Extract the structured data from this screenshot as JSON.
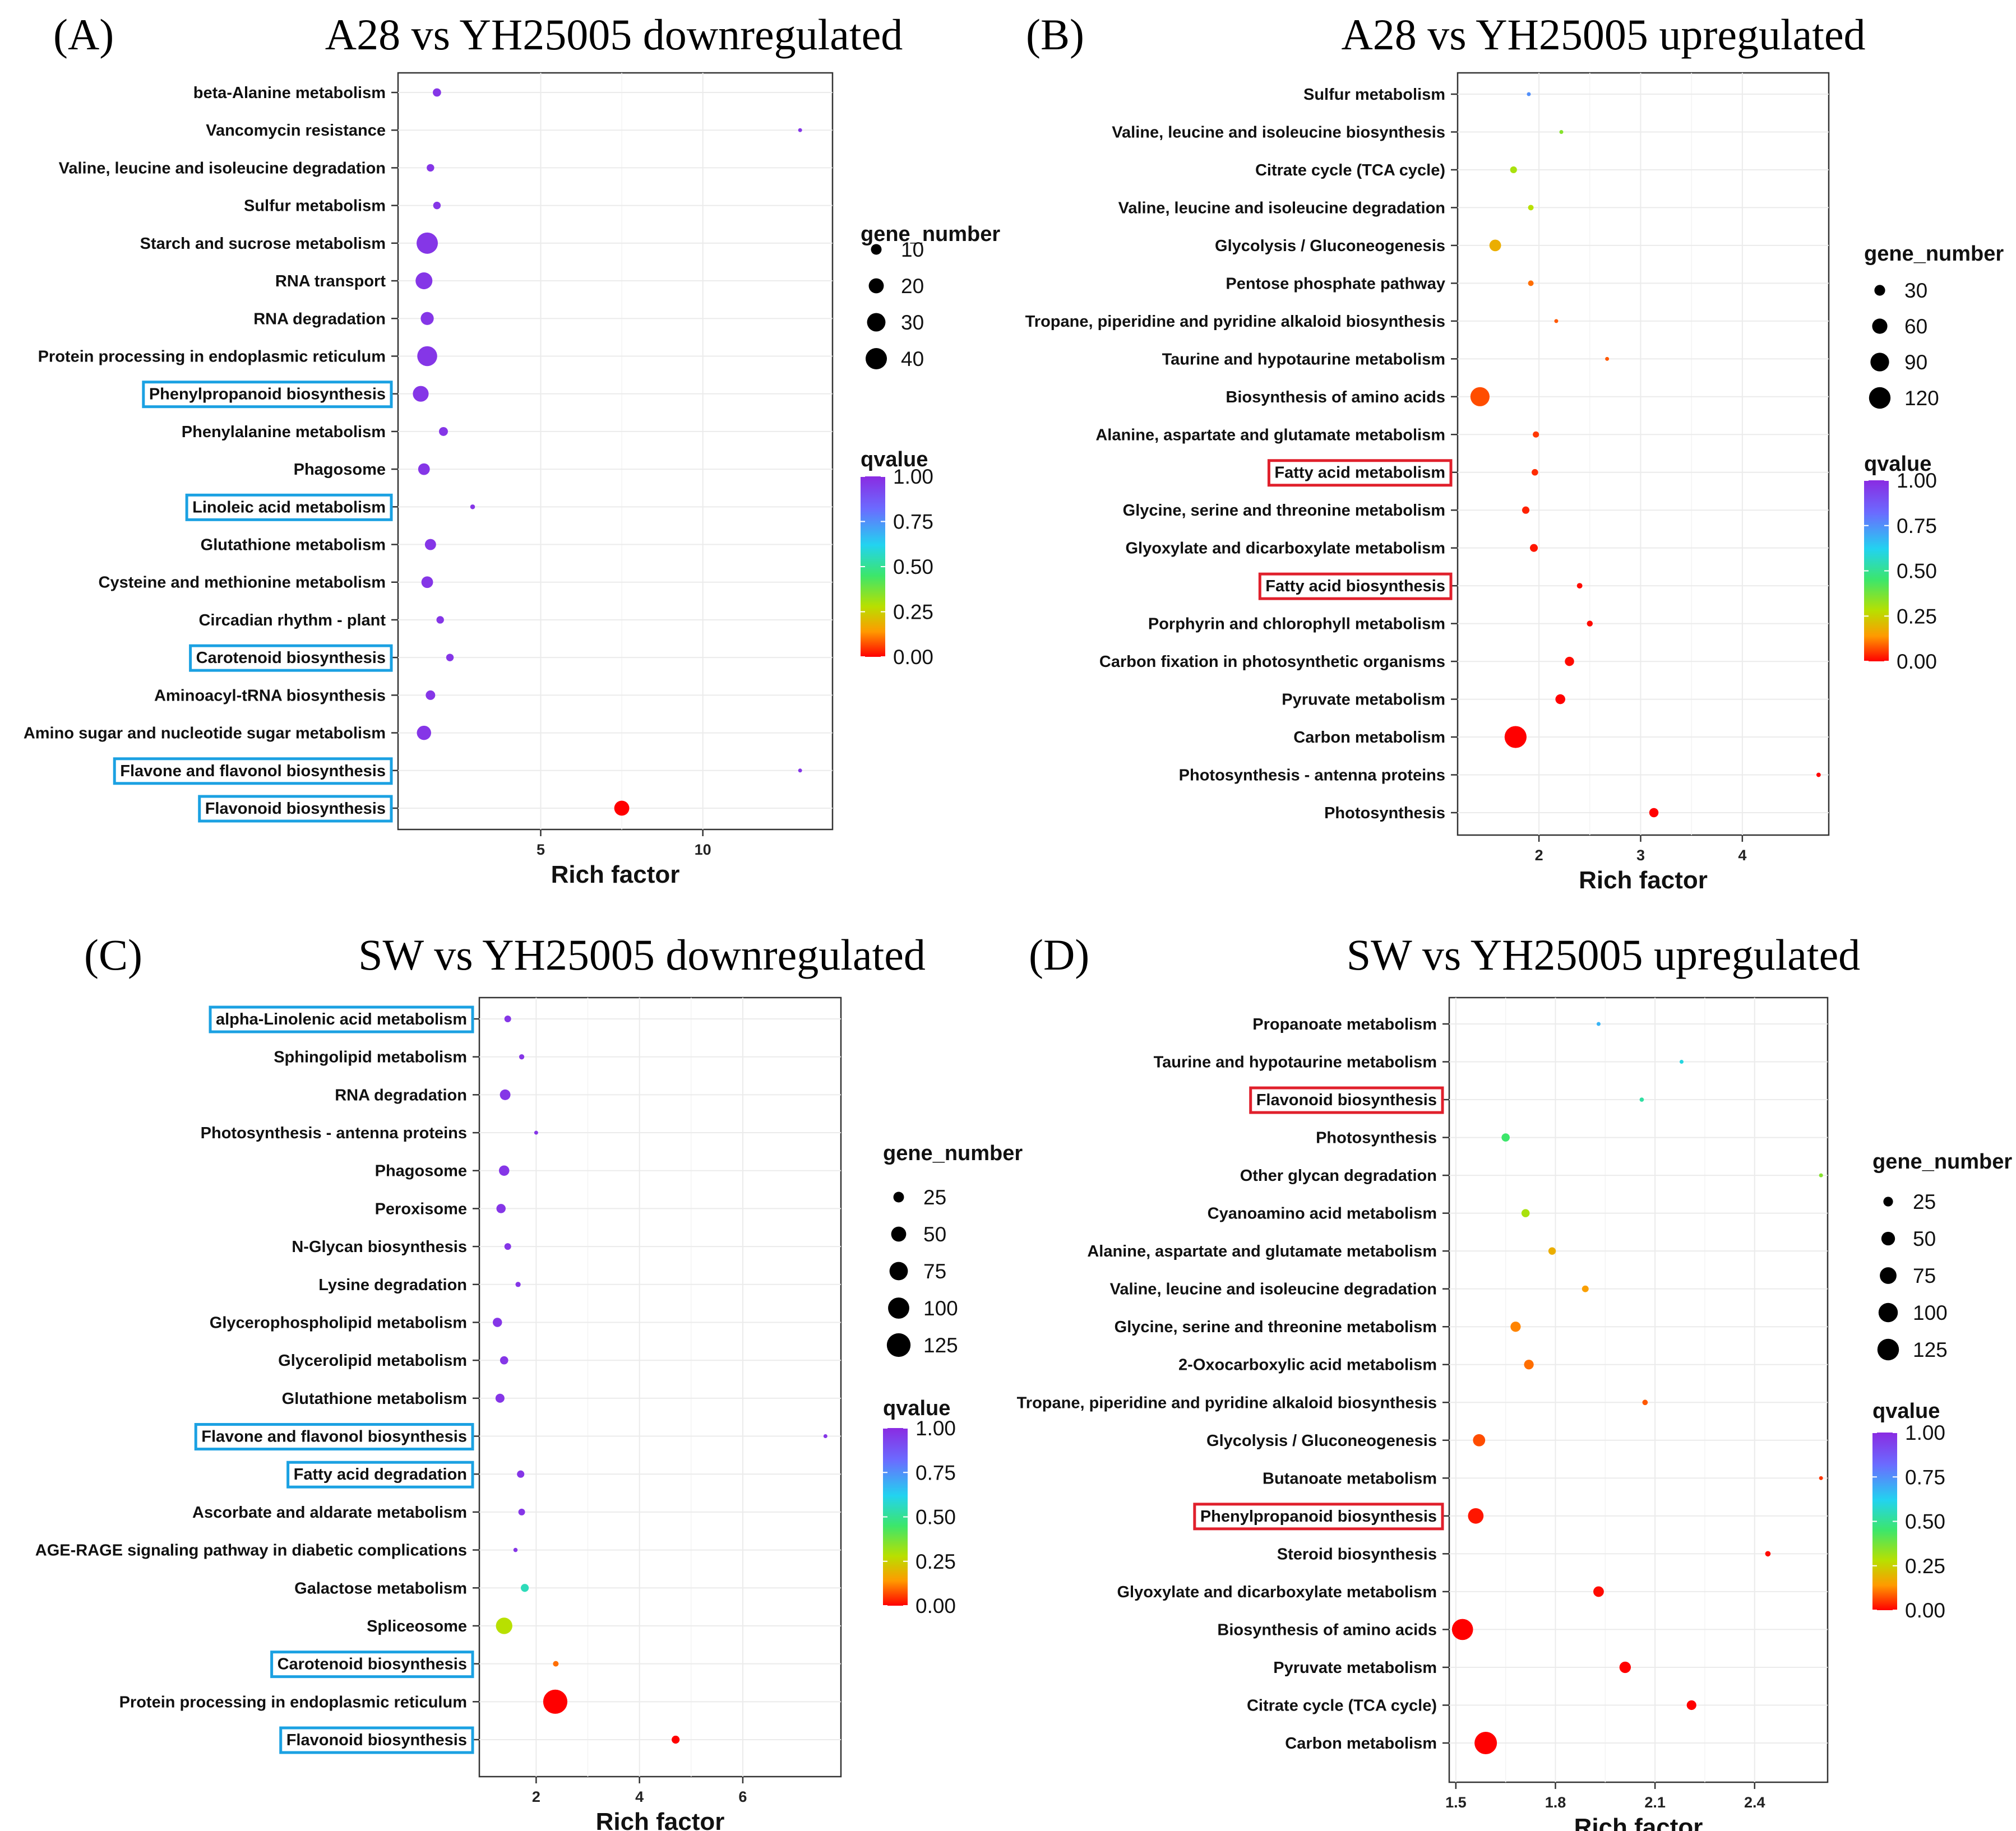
{
  "figure_colors": {
    "blue_box": "#1ba1e2",
    "red_box": "#e0202c",
    "grid": "#ebebeb"
  },
  "chart_data": [
    {
      "id": "A",
      "type": "scatter",
      "panel_label": "(A)",
      "title": "A28 vs YH25005 downregulated",
      "xlabel": "Rich factor",
      "xticks": [
        5,
        10
      ],
      "xlim": [
        0.6,
        14.0
      ],
      "size_legend": {
        "title": "gene_number",
        "values": [
          10,
          20,
          30,
          40
        ]
      },
      "color_legend": {
        "title": "qvalue",
        "ticks": [
          "1.00",
          "0.75",
          "0.50",
          "0.25",
          "0.00"
        ]
      },
      "highlight": "blue",
      "points": [
        {
          "name": "beta-Alanine metabolism",
          "x": 1.8,
          "q": 0.97,
          "g": 6,
          "box": false
        },
        {
          "name": "Vancomycin resistance",
          "x": 13.0,
          "q": 0.97,
          "g": 1,
          "box": false
        },
        {
          "name": "Valine, leucine and isoleucine degradation",
          "x": 1.6,
          "q": 0.97,
          "g": 5,
          "box": false
        },
        {
          "name": "Sulfur metabolism",
          "x": 1.8,
          "q": 0.97,
          "g": 5,
          "box": false
        },
        {
          "name": "Starch and sucrose metabolism",
          "x": 1.5,
          "q": 0.97,
          "g": 40,
          "box": false
        },
        {
          "name": "RNA transport",
          "x": 1.4,
          "q": 0.97,
          "g": 25,
          "box": false
        },
        {
          "name": "RNA degradation",
          "x": 1.5,
          "q": 0.97,
          "g": 15,
          "box": false
        },
        {
          "name": "Protein processing in endoplasmic reticulum",
          "x": 1.5,
          "q": 0.97,
          "g": 35,
          "box": false
        },
        {
          "name": "Phenylpropanoid biosynthesis",
          "x": 1.3,
          "q": 0.97,
          "g": 22,
          "box": true
        },
        {
          "name": "Phenylalanine metabolism",
          "x": 2.0,
          "q": 0.97,
          "g": 7,
          "box": false
        },
        {
          "name": "Phagosome",
          "x": 1.4,
          "q": 0.97,
          "g": 12,
          "box": false
        },
        {
          "name": "Linoleic acid metabolism",
          "x": 2.9,
          "q": 0.97,
          "g": 2,
          "box": true
        },
        {
          "name": "Glutathione metabolism",
          "x": 1.6,
          "q": 0.97,
          "g": 11,
          "box": false
        },
        {
          "name": "Cysteine and methionine metabolism",
          "x": 1.5,
          "q": 0.97,
          "g": 12,
          "box": false
        },
        {
          "name": "Circadian rhythm - plant",
          "x": 1.9,
          "q": 0.97,
          "g": 5,
          "box": false
        },
        {
          "name": "Carotenoid biosynthesis",
          "x": 2.2,
          "q": 0.97,
          "g": 5,
          "box": true
        },
        {
          "name": "Aminoacyl-tRNA biosynthesis",
          "x": 1.6,
          "q": 0.97,
          "g": 8,
          "box": false
        },
        {
          "name": "Amino sugar and nucleotide sugar metabolism",
          "x": 1.4,
          "q": 0.97,
          "g": 18,
          "box": false
        },
        {
          "name": "Flavone and flavonol biosynthesis",
          "x": 13.0,
          "q": 0.97,
          "g": 1,
          "box": true
        },
        {
          "name": "Flavonoid biosynthesis",
          "x": 7.5,
          "q": 0.0,
          "g": 20,
          "box": true
        }
      ]
    },
    {
      "id": "B",
      "type": "scatter",
      "panel_label": "(B)",
      "title": "A28 vs YH25005 upregulated",
      "xlabel": "Rich factor",
      "xticks": [
        2,
        3,
        4
      ],
      "xlim": [
        1.2,
        4.85
      ],
      "size_legend": {
        "title": "gene_number",
        "values": [
          30,
          60,
          90,
          120
        ]
      },
      "color_legend": {
        "title": "qvalue",
        "ticks": [
          "1.00",
          "0.75",
          "0.50",
          "0.25",
          "0.00"
        ]
      },
      "highlight": "red",
      "points": [
        {
          "name": "Sulfur metabolism",
          "x": 1.9,
          "q": 0.75,
          "g": 3,
          "box": false
        },
        {
          "name": "Valine, leucine and isoleucine biosynthesis",
          "x": 2.22,
          "q": 0.35,
          "g": 3,
          "box": false
        },
        {
          "name": "Citrate cycle (TCA cycle)",
          "x": 1.75,
          "q": 0.3,
          "g": 12,
          "box": false
        },
        {
          "name": "Valine, leucine and isoleucine degradation",
          "x": 1.92,
          "q": 0.28,
          "g": 8,
          "box": false
        },
        {
          "name": "Glycolysis / Gluconeogenesis",
          "x": 1.57,
          "q": 0.18,
          "g": 35,
          "box": false
        },
        {
          "name": "Pentose phosphate pathway",
          "x": 1.92,
          "q": 0.1,
          "g": 8,
          "box": false
        },
        {
          "name": "Tropane, piperidine and pyridine alkaloid biosynthesis",
          "x": 2.17,
          "q": 0.08,
          "g": 4,
          "box": false
        },
        {
          "name": "Taurine and hypotaurine metabolism",
          "x": 2.67,
          "q": 0.08,
          "g": 2,
          "box": false
        },
        {
          "name": "Biosynthesis of amino acids",
          "x": 1.42,
          "q": 0.07,
          "g": 95,
          "box": false
        },
        {
          "name": "Alanine, aspartate and glutamate metabolism",
          "x": 1.97,
          "q": 0.05,
          "g": 10,
          "box": false
        },
        {
          "name": "Fatty acid metabolism",
          "x": 1.96,
          "q": 0.04,
          "g": 11,
          "box": true
        },
        {
          "name": "Glycine, serine and threonine metabolism",
          "x": 1.87,
          "q": 0.03,
          "g": 14,
          "box": false
        },
        {
          "name": "Glyoxylate and dicarboxylate metabolism",
          "x": 1.95,
          "q": 0.02,
          "g": 16,
          "box": false
        },
        {
          "name": "Fatty acid biosynthesis",
          "x": 2.4,
          "q": 0.01,
          "g": 8,
          "box": true
        },
        {
          "name": "Porphyrin and chlorophyll metabolism",
          "x": 2.5,
          "q": 0.01,
          "g": 9,
          "box": false
        },
        {
          "name": "Carbon fixation in photosynthetic organisms",
          "x": 2.3,
          "q": 0.01,
          "g": 22,
          "box": false
        },
        {
          "name": "Pyruvate metabolism",
          "x": 2.21,
          "q": 0.0,
          "g": 25,
          "box": false
        },
        {
          "name": "Carbon metabolism",
          "x": 1.77,
          "q": 0.0,
          "g": 125,
          "box": false
        },
        {
          "name": "Photosynthesis - antenna proteins",
          "x": 4.75,
          "q": 0.0,
          "g": 5,
          "box": false
        },
        {
          "name": "Photosynthesis",
          "x": 3.13,
          "q": 0.0,
          "g": 22,
          "box": false
        }
      ]
    },
    {
      "id": "C",
      "type": "scatter",
      "panel_label": "(C)",
      "title": "SW vs YH25005 downregulated",
      "xlabel": "Rich factor",
      "xticks": [
        2,
        4,
        6
      ],
      "xlim": [
        0.9,
        7.9
      ],
      "size_legend": {
        "title": "gene_number",
        "values": [
          25,
          50,
          75,
          100,
          125
        ]
      },
      "color_legend": {
        "title": "qvalue",
        "ticks": [
          "1.00",
          "0.75",
          "0.50",
          "0.25",
          "0.00"
        ]
      },
      "highlight": "blue",
      "points": [
        {
          "name": "alpha-Linolenic acid metabolism",
          "x": 1.45,
          "q": 0.97,
          "g": 10,
          "box": true
        },
        {
          "name": "Sphingolipid metabolism",
          "x": 1.72,
          "q": 0.97,
          "g": 6,
          "box": false
        },
        {
          "name": "RNA degradation",
          "x": 1.4,
          "q": 0.97,
          "g": 25,
          "box": false
        },
        {
          "name": "Photosynthesis - antenna proteins",
          "x": 2.0,
          "q": 0.97,
          "g": 3,
          "box": false
        },
        {
          "name": "Phagosome",
          "x": 1.38,
          "q": 0.97,
          "g": 24,
          "box": false
        },
        {
          "name": "Peroxisome",
          "x": 1.32,
          "q": 0.97,
          "g": 19,
          "box": false
        },
        {
          "name": "N-Glycan biosynthesis",
          "x": 1.45,
          "q": 0.97,
          "g": 10,
          "box": false
        },
        {
          "name": "Lysine degradation",
          "x": 1.65,
          "q": 0.97,
          "g": 6,
          "box": false
        },
        {
          "name": "Glycerophospholipid metabolism",
          "x": 1.25,
          "q": 0.97,
          "g": 19,
          "box": false
        },
        {
          "name": "Glycerolipid metabolism",
          "x": 1.38,
          "q": 0.97,
          "g": 15,
          "box": false
        },
        {
          "name": "Glutathione metabolism",
          "x": 1.3,
          "q": 0.97,
          "g": 18,
          "box": false
        },
        {
          "name": "Flavone and flavonol biosynthesis",
          "x": 7.6,
          "q": 0.97,
          "g": 2,
          "box": true
        },
        {
          "name": "Fatty acid degradation",
          "x": 1.7,
          "q": 0.97,
          "g": 12,
          "box": true
        },
        {
          "name": "Ascorbate and aldarate metabolism",
          "x": 1.72,
          "q": 0.97,
          "g": 10,
          "box": false
        },
        {
          "name": "AGE-RAGE signaling pathway in diabetic complications",
          "x": 1.6,
          "q": 0.97,
          "g": 4,
          "box": false
        },
        {
          "name": "Galactose metabolism",
          "x": 1.78,
          "q": 0.55,
          "g": 14,
          "box": false
        },
        {
          "name": "Spliceosome",
          "x": 1.38,
          "q": 0.28,
          "g": 60,
          "box": false
        },
        {
          "name": "Carotenoid biosynthesis",
          "x": 2.38,
          "q": 0.1,
          "g": 7,
          "box": true
        },
        {
          "name": "Protein processing in endoplasmic reticulum",
          "x": 2.37,
          "q": 0.0,
          "g": 130,
          "box": false
        },
        {
          "name": "Flavonoid biosynthesis",
          "x": 4.7,
          "q": 0.0,
          "g": 14,
          "box": true
        }
      ]
    },
    {
      "id": "D",
      "type": "scatter",
      "panel_label": "(D)",
      "title": "SW vs YH25005 upregulated",
      "xlabel": "Rich factor",
      "xticks": [
        "1.5",
        "1.8",
        "2.1",
        "2.4"
      ],
      "xlim": [
        1.48,
        2.62
      ],
      "size_legend": {
        "title": "gene_number",
        "values": [
          25,
          50,
          75,
          100,
          125
        ]
      },
      "color_legend": {
        "title": "qvalue",
        "ticks": [
          "1.00",
          "0.75",
          "0.50",
          "0.25",
          "0.00"
        ]
      },
      "highlight": "red",
      "points": [
        {
          "name": "Propanoate metabolism",
          "x": 1.93,
          "q": 0.68,
          "g": 4,
          "box": false
        },
        {
          "name": "Taurine and hypotaurine metabolism",
          "x": 2.18,
          "q": 0.6,
          "g": 4,
          "box": false
        },
        {
          "name": "Flavonoid biosynthesis",
          "x": 2.06,
          "q": 0.52,
          "g": 5,
          "box": true
        },
        {
          "name": "Photosynthesis",
          "x": 1.65,
          "q": 0.45,
          "g": 18,
          "box": false
        },
        {
          "name": "Other glycan degradation",
          "x": 2.6,
          "q": 0.35,
          "g": 3,
          "box": false
        },
        {
          "name": "Cyanoamino acid metabolism",
          "x": 1.71,
          "q": 0.3,
          "g": 18,
          "box": false
        },
        {
          "name": "Alanine, aspartate and glutamate metabolism",
          "x": 1.79,
          "q": 0.18,
          "g": 15,
          "box": false
        },
        {
          "name": "Valine, leucine and isoleucine degradation",
          "x": 1.89,
          "q": 0.15,
          "g": 12,
          "box": false
        },
        {
          "name": "Glycine, serine and threonine metabolism",
          "x": 1.68,
          "q": 0.12,
          "g": 28,
          "box": false
        },
        {
          "name": "2-Oxocarboxylic acid metabolism",
          "x": 1.72,
          "q": 0.1,
          "g": 25,
          "box": false
        },
        {
          "name": "Tropane, piperidine and pyridine alkaloid biosynthesis",
          "x": 2.07,
          "q": 0.08,
          "g": 8,
          "box": false
        },
        {
          "name": "Glycolysis / Gluconeogenesis",
          "x": 1.57,
          "q": 0.07,
          "g": 40,
          "box": false
        },
        {
          "name": "Butanoate metabolism",
          "x": 2.6,
          "q": 0.05,
          "g": 4,
          "box": false
        },
        {
          "name": "Phenylpropanoid biosynthesis",
          "x": 1.56,
          "q": 0.02,
          "g": 65,
          "box": true
        },
        {
          "name": "Steroid biosynthesis",
          "x": 2.44,
          "q": 0.01,
          "g": 8,
          "box": false
        },
        {
          "name": "Glyoxylate and dicarboxylate metabolism",
          "x": 1.93,
          "q": 0.01,
          "g": 30,
          "box": false
        },
        {
          "name": "Biosynthesis of amino acids",
          "x": 1.52,
          "q": 0.0,
          "g": 120,
          "box": false
        },
        {
          "name": "Pyruvate metabolism",
          "x": 2.01,
          "q": 0.0,
          "g": 35,
          "box": false
        },
        {
          "name": "Citrate cycle (TCA cycle)",
          "x": 2.21,
          "q": 0.0,
          "g": 25,
          "box": false
        },
        {
          "name": "Carbon metabolism",
          "x": 1.59,
          "q": 0.0,
          "g": 135,
          "box": false
        }
      ]
    }
  ]
}
